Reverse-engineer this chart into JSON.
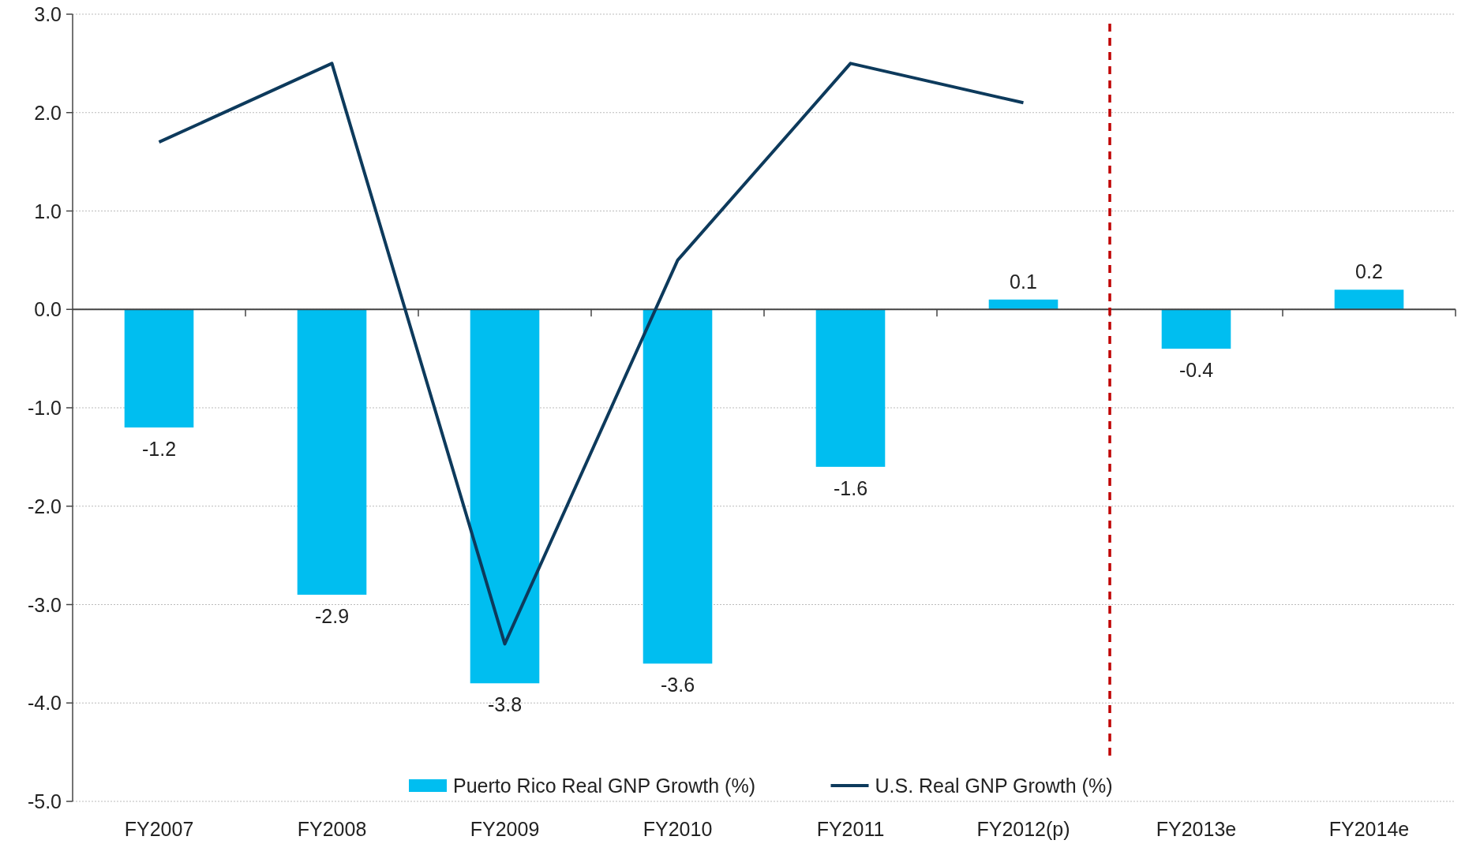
{
  "chart_data": {
    "type": "bar",
    "categories": [
      "FY2007",
      "FY2008",
      "FY2009",
      "FY2010",
      "FY2011",
      "FY2012(p)",
      "FY2013e",
      "FY2014e"
    ],
    "series": [
      {
        "name": "Puerto Rico Real GNP Growth (%)",
        "color": "#00bef0",
        "values": [
          -1.2,
          -2.9,
          -3.8,
          -3.6,
          -1.6,
          0.1,
          -0.4,
          0.2
        ],
        "value_labels": [
          "-1.2",
          "-2.9",
          "-3.8",
          "-3.6",
          "-1.6",
          "0.1",
          "-0.4",
          "0.2"
        ]
      },
      {
        "name": "U.S. Real GNP Growth (%)",
        "type": "line",
        "color": "#0d3a5c",
        "values": [
          1.7,
          2.5,
          -3.4,
          0.5,
          2.5,
          2.1,
          null,
          null
        ]
      }
    ],
    "ylim": [
      -5,
      3
    ],
    "yticks": [
      {
        "value": -5,
        "label": "-5.0"
      },
      {
        "value": -4,
        "label": "-4.0"
      },
      {
        "value": -3,
        "label": "-3.0"
      },
      {
        "value": -2,
        "label": "-2.0"
      },
      {
        "value": -1,
        "label": "-1.0"
      },
      {
        "value": 0,
        "label": "0.0"
      },
      {
        "value": 1,
        "label": "1.0"
      },
      {
        "value": 2,
        "label": "2.0"
      },
      {
        "value": 3,
        "label": "3.0"
      }
    ],
    "grid": "y",
    "legend": "bottom",
    "marker": "none"
  }
}
